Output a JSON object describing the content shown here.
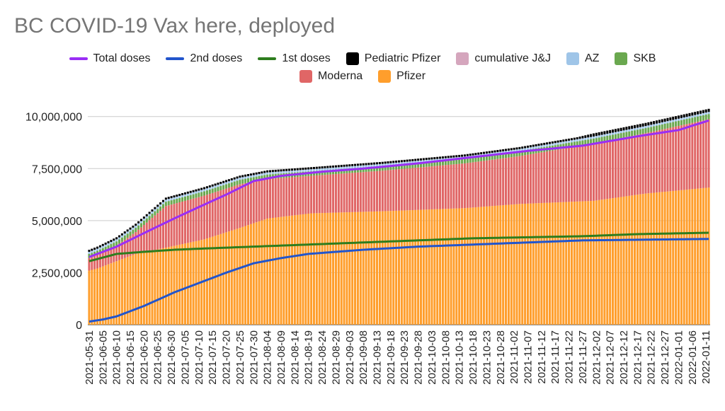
{
  "chart_data": {
    "type": "bar",
    "title": "BC COVID-19 Vax here, deployed",
    "stacked": true,
    "start_date": "2021-05-31",
    "days": 227,
    "ylim": [
      0,
      10500000
    ],
    "y_ticks": [
      {
        "value": 0,
        "label": "0"
      },
      {
        "value": 2500000,
        "label": "2,500,000"
      },
      {
        "value": 5000000,
        "label": "5,000,000"
      },
      {
        "value": 7500000,
        "label": "7,500,000"
      },
      {
        "value": 10000000,
        "label": "10,000,000"
      }
    ],
    "x_tick_labels": [
      "2021-05-31",
      "2021-06-05",
      "2021-06-10",
      "2021-06-15",
      "2021-06-20",
      "2021-06-25",
      "2021-06-30",
      "2021-07-05",
      "2021-07-10",
      "2021-07-15",
      "2021-07-20",
      "2021-07-25",
      "2021-07-30",
      "2021-08-04",
      "2021-08-09",
      "2021-08-14",
      "2021-08-19",
      "2021-08-24",
      "2021-08-29",
      "2021-09-03",
      "2021-09-08",
      "2021-09-13",
      "2021-09-18",
      "2021-09-23",
      "2021-09-28",
      "2021-10-03",
      "2021-10-08",
      "2021-10-13",
      "2021-10-18",
      "2021-10-23",
      "2021-10-28",
      "2021-11-02",
      "2021-11-07",
      "2021-11-12",
      "2021-11-17",
      "2021-11-22",
      "2021-11-27",
      "2021-12-02",
      "2021-12-07",
      "2021-12-12",
      "2021-12-17",
      "2021-12-22",
      "2021-12-27",
      "2022-01-01",
      "2022-01-06",
      "2022-01-11"
    ],
    "grid": true,
    "legend_position": "top",
    "legend": [
      {
        "name": "Total doses",
        "kind": "line",
        "color": "#9a2ef5"
      },
      {
        "name": "2nd doses",
        "kind": "line",
        "color": "#2255cc"
      },
      {
        "name": "1st doses",
        "kind": "line",
        "color": "#2e7d1e"
      },
      {
        "name": "Pediatric Pfizer",
        "kind": "bar",
        "color": "#000000"
      },
      {
        "name": "cumulative J&J",
        "kind": "bar",
        "color": "#d5a6bd"
      },
      {
        "name": "AZ",
        "kind": "bar",
        "color": "#9fc5e8"
      },
      {
        "name": "SKB",
        "kind": "bar",
        "color": "#6aa84f"
      },
      {
        "name": "Moderna",
        "kind": "bar",
        "color": "#e06666"
      },
      {
        "name": "Pfizer",
        "kind": "bar",
        "color": "#ff9e2c"
      }
    ],
    "bar_series": {
      "Pfizer": {
        "dates": [
          "2021-05-31",
          "2021-06-03",
          "2021-06-10",
          "2021-06-17",
          "2021-06-28",
          "2021-07-12",
          "2021-07-25",
          "2021-08-04",
          "2021-08-20",
          "2021-09-15",
          "2021-10-15",
          "2021-11-04",
          "2021-12-01",
          "2021-12-20",
          "2022-01-13"
        ],
        "values": [
          2600000,
          2700000,
          3050000,
          3400000,
          3700000,
          4100000,
          4650000,
          5100000,
          5350000,
          5450000,
          5600000,
          5800000,
          5950000,
          6300000,
          6600000
        ]
      },
      "Moderna": {
        "dates": [
          "2021-05-31",
          "2021-06-03",
          "2021-06-10",
          "2021-06-17",
          "2021-06-28",
          "2021-07-12",
          "2021-07-25",
          "2021-08-04",
          "2021-08-20",
          "2021-09-15",
          "2021-10-15",
          "2021-11-04",
          "2021-12-01",
          "2021-12-20",
          "2022-01-13"
        ],
        "values": [
          600000,
          650000,
          750000,
          1050000,
          2000000,
          2100000,
          2100000,
          1900000,
          1800000,
          1950000,
          2150000,
          2300000,
          2750000,
          2900000,
          3300000
        ]
      },
      "SKB": {
        "dates": [
          "2021-05-31",
          "2022-01-13"
        ],
        "values": [
          200000,
          250000
        ]
      },
      "AZ": {
        "dates": [
          "2021-05-31",
          "2022-01-13"
        ],
        "values": [
          100000,
          100000
        ]
      },
      "cumulative J&J": {
        "dates": [
          "2021-05-31",
          "2022-01-13"
        ],
        "values": [
          0,
          0
        ]
      },
      "Pediatric Pfizer": {
        "dates": [
          "2021-05-31",
          "2021-11-25",
          "2021-12-01",
          "2021-12-20",
          "2022-01-13"
        ],
        "values": [
          100000,
          100000,
          150000,
          150000,
          150000
        ]
      }
    },
    "line_series": {
      "Total doses": {
        "dates": [
          "2021-05-31",
          "2021-06-10",
          "2021-06-20",
          "2021-07-01",
          "2021-07-10",
          "2021-07-20",
          "2021-07-30",
          "2021-08-09",
          "2021-08-24",
          "2021-09-08",
          "2021-09-28",
          "2021-10-18",
          "2021-11-07",
          "2021-11-27",
          "2021-12-17",
          "2022-01-01",
          "2022-01-13"
        ],
        "values": [
          3250000,
          3750000,
          4400000,
          5100000,
          5650000,
          6250000,
          6900000,
          7150000,
          7350000,
          7500000,
          7750000,
          8050000,
          8350000,
          8600000,
          9050000,
          9350000,
          9850000
        ]
      },
      "2nd doses": {
        "dates": [
          "2021-05-31",
          "2021-06-05",
          "2021-06-10",
          "2021-06-20",
          "2021-07-01",
          "2021-07-10",
          "2021-07-20",
          "2021-07-30",
          "2021-08-09",
          "2021-08-19",
          "2021-09-08",
          "2021-09-28",
          "2021-10-18",
          "2021-11-07",
          "2021-11-27",
          "2021-12-17",
          "2022-01-13"
        ],
        "values": [
          150000,
          250000,
          400000,
          900000,
          1550000,
          2000000,
          2500000,
          2950000,
          3200000,
          3400000,
          3600000,
          3750000,
          3850000,
          3950000,
          4050000,
          4080000,
          4120000
        ]
      },
      "1st doses": {
        "dates": [
          "2021-05-31",
          "2021-06-10",
          "2021-06-20",
          "2021-07-01",
          "2021-07-10",
          "2021-07-20",
          "2021-07-30",
          "2021-08-19",
          "2021-09-08",
          "2021-09-28",
          "2021-10-18",
          "2021-11-07",
          "2021-11-27",
          "2021-12-17",
          "2022-01-13"
        ],
        "values": [
          3050000,
          3400000,
          3500000,
          3600000,
          3650000,
          3700000,
          3750000,
          3850000,
          3950000,
          4050000,
          4150000,
          4200000,
          4250000,
          4350000,
          4420000
        ]
      }
    }
  }
}
